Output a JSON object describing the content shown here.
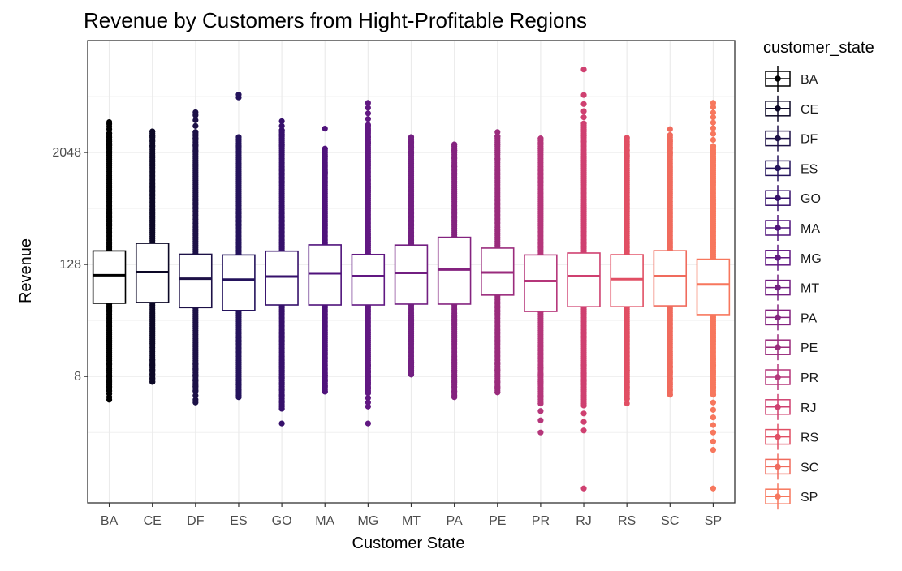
{
  "chart_data": {
    "type": "boxplot",
    "title": "Revenue by Customers from Hight-Profitable Regions",
    "xlabel": "Customer State",
    "ylabel": "Revenue",
    "y_scale": "log2",
    "y_ticks": [
      8,
      128,
      2048
    ],
    "y_tick_labels": [
      "8",
      "128",
      "2048"
    ],
    "ylim": [
      0.35,
      32768
    ],
    "grid": true,
    "legend": {
      "title": "customer_state",
      "placement": "right"
    },
    "categories": [
      "BA",
      "CE",
      "DF",
      "ES",
      "GO",
      "MA",
      "MG",
      "MT",
      "PA",
      "PE",
      "PR",
      "RJ",
      "RS",
      "SC",
      "SP"
    ],
    "colors": [
      "#000000",
      "#0c0826",
      "#1d1147",
      "#24135c",
      "#36106b",
      "#4f127b",
      "#611882",
      "#721f81",
      "#84237f",
      "#9a2b7c",
      "#b5367a",
      "#cf4070",
      "#e14f64",
      "#f06b5d",
      "#f7775d"
    ],
    "boxes": [
      {
        "state": "BA",
        "q1": 49,
        "median": 98,
        "q3": 179,
        "lower_dots": [
          4.5,
          4.8,
          5.2,
          5.6,
          6.2,
          7.0,
          8.0,
          9.2,
          11
        ],
        "upper_dots": [
          2450,
          2700,
          3000,
          3300,
          3650,
          3900,
          4150,
          4350
        ]
      },
      {
        "state": "CE",
        "q1": 50,
        "median": 106,
        "q3": 216,
        "lower_dots": [
          7.0,
          7.6,
          8.4,
          9.4,
          10.6,
          12
        ],
        "upper_dots": [
          2400,
          2750,
          3050,
          3450
        ]
      },
      {
        "state": "DF",
        "q1": 44,
        "median": 90,
        "q3": 165,
        "lower_dots": [
          4.2,
          4.5,
          5.0,
          5.6,
          6.3,
          7.2,
          8.3,
          9.6,
          11
        ],
        "upper_dots": [
          2100,
          2450,
          2900,
          3400,
          3950,
          4550,
          5150,
          5550
        ]
      },
      {
        "state": "ES",
        "q1": 41,
        "median": 88,
        "q3": 162,
        "lower_dots": [
          4.8,
          5.3,
          5.8,
          6.5,
          7.3
        ],
        "upper_dots": [
          1500,
          1800,
          2400,
          3000,
          8000,
          8600
        ]
      },
      {
        "state": "GO",
        "q1": 47,
        "median": 95,
        "q3": 178,
        "lower_dots": [
          2.5,
          3.6,
          4.3,
          5.0,
          5.8,
          6.7,
          7.8
        ],
        "upper_dots": [
          2450,
          2800,
          3150,
          3550,
          3950,
          4450
        ]
      },
      {
        "state": "MA",
        "q1": 47,
        "median": 103,
        "q3": 208,
        "lower_dots": [
          5.5,
          6.3,
          7.2,
          8.2
        ],
        "upper_dots": [
          1250,
          1500,
          1850,
          2250,
          3700
        ]
      },
      {
        "state": "MG",
        "q1": 47,
        "median": 96,
        "q3": 164,
        "lower_dots": [
          2.5,
          3.8,
          4.2,
          4.7,
          5.3,
          6.0,
          6.9,
          7.9,
          9.0,
          10.5
        ],
        "upper_dots": [
          2600,
          3000,
          3500,
          4050,
          4700,
          5400,
          6200,
          7000
        ]
      },
      {
        "state": "MT",
        "q1": 48,
        "median": 104,
        "q3": 207,
        "lower_dots": [
          8.4,
          9.2,
          10.3,
          11.5
        ],
        "upper_dots": [
          2000,
          2350,
          2650,
          3000
        ]
      },
      {
        "state": "PA",
        "q1": 48,
        "median": 113,
        "q3": 251,
        "lower_dots": [
          4.8,
          5.5,
          6.2,
          7.0,
          8.0,
          9.2
        ],
        "upper_dots": [
          1450,
          1800,
          2150,
          2500
        ]
      },
      {
        "state": "PE",
        "q1": 60,
        "median": 105,
        "q3": 192,
        "lower_dots": [
          5.4,
          6.1,
          7.0,
          8.1,
          9.4,
          11
        ],
        "upper_dots": [
          1750,
          2050,
          2500,
          3050,
          3400
        ]
      },
      {
        "state": "PR",
        "q1": 40,
        "median": 85,
        "q3": 162,
        "lower_dots": [
          2.0,
          2.7,
          3.4,
          4.1,
          4.9,
          5.9,
          7.0,
          8.4,
          10
        ],
        "upper_dots": [
          2250,
          2550,
          2900
        ]
      },
      {
        "state": "RJ",
        "q1": 45,
        "median": 96,
        "q3": 170,
        "lower_dots": [
          0.5,
          2.1,
          2.6,
          3.2,
          3.9,
          4.8,
          5.8,
          7.1,
          8.6,
          10.5
        ],
        "upper_dots": [
          2700,
          3100,
          3600,
          4200,
          4900,
          5700,
          6800,
          8500,
          16000
        ]
      },
      {
        "state": "RS",
        "q1": 45,
        "median": 89,
        "q3": 163,
        "lower_dots": [
          4.1,
          4.6,
          5.3,
          6.1,
          7.0,
          8.1,
          9.3
        ],
        "upper_dots": [
          1900,
          2150,
          2500,
          2950
        ]
      },
      {
        "state": "SC",
        "q1": 46,
        "median": 96,
        "q3": 180,
        "lower_dots": [
          5.1,
          5.8,
          6.6,
          7.6,
          8.8,
          10.2
        ],
        "upper_dots": [
          2000,
          2300,
          2700,
          3150,
          3650
        ]
      },
      {
        "state": "SP",
        "q1": 37,
        "median": 78,
        "q3": 146,
        "lower_dots": [
          0.5,
          1.3,
          1.6,
          2.0,
          2.4,
          2.9,
          3.5,
          4.2,
          5.1,
          6.1,
          7.3,
          8.8,
          10.5,
          12.5
        ],
        "upper_dots": [
          1500,
          1750,
          2050,
          2400,
          2800,
          3250,
          3750,
          4300,
          4900,
          5500,
          6300,
          7000
        ]
      }
    ]
  }
}
